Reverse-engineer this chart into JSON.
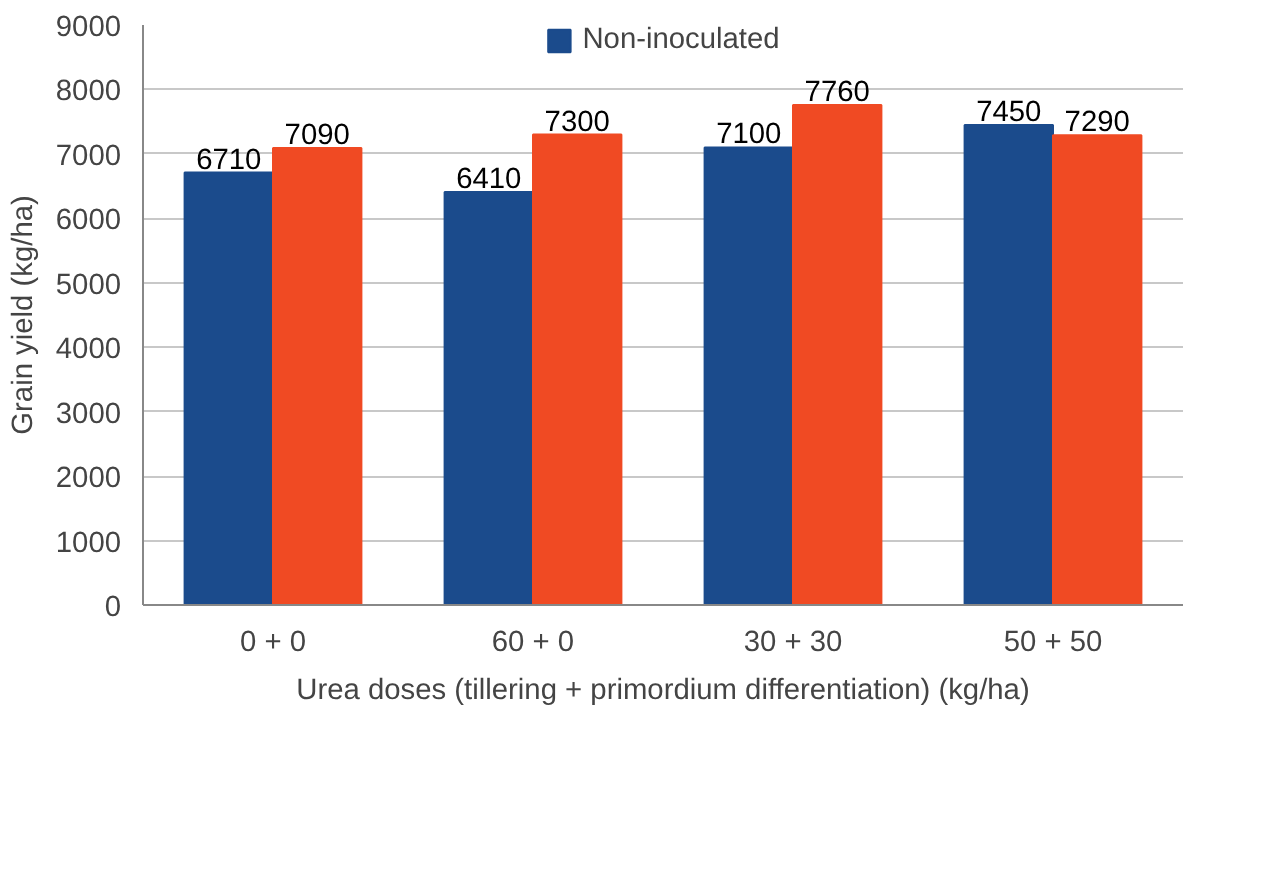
{
  "chart_data": {
    "type": "bar",
    "xlabel": "Urea doses (tillering + primordium differentiation) (kg/ha)",
    "ylabel": "Grain yield (kg/ha)",
    "categories": [
      "0 + 0",
      "60 + 0",
      "30 + 30",
      "50 + 50"
    ],
    "series": [
      {
        "name": "Non-inoculated",
        "color": "#1b4b8c",
        "values": [
          6710,
          6410,
          7100,
          7450
        ]
      },
      {
        "color": "#f04a23",
        "values": [
          7090,
          7300,
          7760,
          7290
        ]
      }
    ],
    "ylim": [
      0,
      9000
    ],
    "yticks": [
      0,
      1000,
      2000,
      3000,
      4000,
      5000,
      6000,
      7000,
      8000,
      9000
    ],
    "grid": "y",
    "legend": "top",
    "data_labels": true
  }
}
